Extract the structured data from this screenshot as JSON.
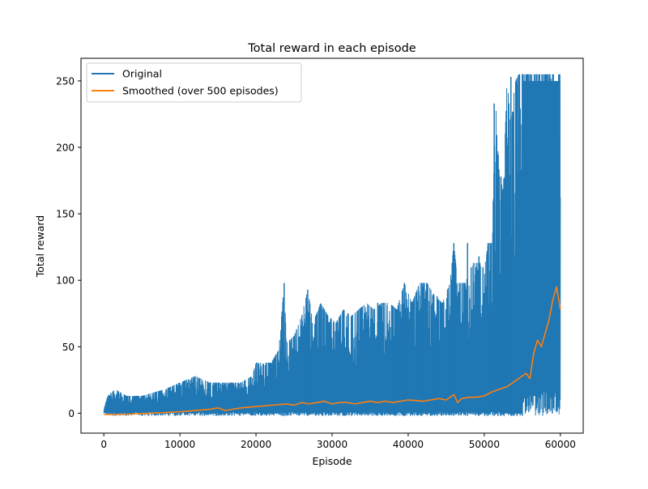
{
  "chart_data": {
    "type": "line",
    "title": "Total reward in each episode",
    "xlabel": "Episode",
    "ylabel": "Total reward",
    "xlim": [
      -3000,
      63000
    ],
    "ylim": [
      -15,
      267
    ],
    "xticks": [
      0,
      10000,
      20000,
      30000,
      40000,
      50000,
      60000
    ],
    "xtick_labels": [
      "0",
      "10000",
      "20000",
      "30000",
      "40000",
      "50000",
      "60000"
    ],
    "yticks": [
      0,
      50,
      100,
      150,
      200,
      250
    ],
    "ytick_labels": [
      "0",
      "50",
      "100",
      "150",
      "200",
      "250"
    ],
    "grid": false,
    "legend_position": "top-left",
    "series": [
      {
        "name": "Original",
        "color": "#1f77b4",
        "kind": "raw",
        "min": -2,
        "envelope_x": [
          0,
          500,
          1500,
          3000,
          5000,
          8000,
          10000,
          12000,
          14000,
          16000,
          18000,
          19500,
          20000,
          21000,
          22000,
          23000,
          23700,
          24000,
          25000,
          26000,
          26800,
          27500,
          28500,
          29500,
          30500,
          31500,
          32500,
          33500,
          34500,
          35500,
          36500,
          37500,
          38500,
          39500,
          40500,
          41500,
          42500,
          43500,
          44500,
          45500,
          46000,
          46500,
          47500,
          48500,
          49500,
          50000,
          50500,
          51000,
          51500,
          52000,
          52500,
          53000,
          53500,
          54000,
          54500,
          55000,
          55500,
          56000,
          57000,
          58000,
          59000,
          60000
        ],
        "envelope_max": [
          3,
          13,
          18,
          13,
          13,
          18,
          23,
          28,
          23,
          23,
          23,
          28,
          38,
          38,
          38,
          48,
          98,
          53,
          58,
          73,
          93,
          68,
          83,
          73,
          68,
          78,
          73,
          78,
          83,
          78,
          83,
          83,
          78,
          98,
          83,
          98,
          98,
          88,
          83,
          98,
          128,
          98,
          98,
          113,
          113,
          108,
          128,
          128,
          233,
          178,
          168,
          253,
          213,
          248,
          255,
          255,
          255,
          255,
          255,
          255,
          255,
          255
        ],
        "spikes_x": [
          23700,
          26800,
          28700,
          36000,
          38300,
          39500,
          41800,
          43800,
          46000,
          47800,
          49300,
          50500,
          51300,
          51800,
          52200,
          52600,
          53500,
          53800,
          54300,
          55000
        ],
        "spikes_y": [
          98,
          93,
          78,
          83,
          78,
          98,
          98,
          88,
          128,
          128,
          118,
          128,
          233,
          128,
          178,
          168,
          253,
          213,
          248,
          255
        ]
      },
      {
        "name": "Smoothed (over 500 episodes)",
        "color": "#ff7f0e",
        "kind": "smoothed",
        "x": [
          0,
          2000,
          4000,
          6000,
          8000,
          10000,
          12000,
          14000,
          15000,
          16000,
          17000,
          18000,
          20000,
          22000,
          24000,
          25000,
          26000,
          27000,
          28000,
          29000,
          30000,
          31000,
          32000,
          33000,
          34000,
          35000,
          36000,
          37000,
          38000,
          40000,
          42000,
          44000,
          45000,
          46000,
          46500,
          47000,
          48000,
          49000,
          50000,
          51000,
          52000,
          53000,
          54000,
          55000,
          55500,
          56000,
          56500,
          57000,
          57500,
          58000,
          58500,
          59000,
          59500,
          59800,
          60000
        ],
        "values": [
          -1,
          -1,
          -0.5,
          0,
          0.5,
          1,
          2,
          3,
          4,
          2,
          3,
          4,
          5,
          6,
          7,
          6,
          8,
          7,
          8,
          9,
          7,
          8,
          8,
          7,
          8,
          9,
          8,
          9,
          8,
          10,
          9,
          11,
          10,
          14,
          8,
          11,
          12,
          12,
          13,
          16,
          18,
          20,
          24,
          28,
          30,
          26,
          45,
          55,
          50,
          60,
          70,
          85,
          95,
          85,
          78
        ]
      }
    ]
  }
}
